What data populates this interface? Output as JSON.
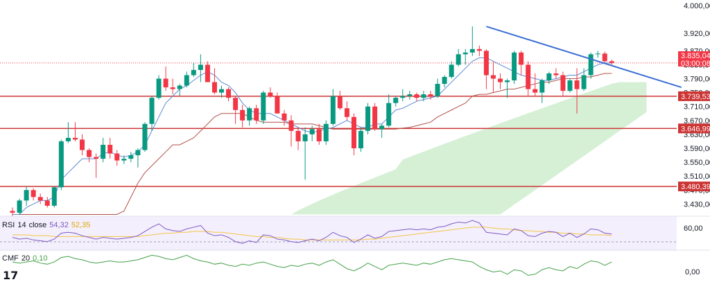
{
  "chart_data": {
    "type": "candlestick",
    "price_ticks": [
      "4.000,00",
      "3.920,00",
      "3.870,00",
      "3.830,00",
      "3.790,00",
      "3.750,00",
      "3.710,00",
      "3.670,00",
      "3.630,00",
      "3.590,00",
      "3.550,00",
      "3.510,00",
      "3.470,00",
      "3.430,00"
    ],
    "ylim": [
      3395,
      4000
    ],
    "last_price": {
      "value": 3835.04,
      "label": "3.835,04",
      "countdown": "03:00:08",
      "color": "#f23645"
    },
    "levels": [
      {
        "value": 3739.53,
        "label": "3.739,53"
      },
      {
        "value": 3646.99,
        "label": "3.646,99"
      },
      {
        "value": 3480.39,
        "label": "3.480,39"
      }
    ],
    "candles": [
      [
        3410,
        3420,
        3395,
        3405
      ],
      [
        3405,
        3445,
        3400,
        3440
      ],
      [
        3440,
        3480,
        3425,
        3470
      ],
      [
        3470,
        3475,
        3440,
        3450
      ],
      [
        3450,
        3460,
        3430,
        3440
      ],
      [
        3440,
        3450,
        3420,
        3425
      ],
      [
        3425,
        3480,
        3420,
        3478
      ],
      [
        3478,
        3615,
        3470,
        3610
      ],
      [
        3610,
        3665,
        3605,
        3620
      ],
      [
        3620,
        3665,
        3610,
        3615
      ],
      [
        3615,
        3630,
        3570,
        3585
      ],
      [
        3585,
        3590,
        3550,
        3565
      ],
      [
        3565,
        3575,
        3505,
        3560
      ],
      [
        3560,
        3620,
        3550,
        3600
      ],
      [
        3600,
        3620,
        3560,
        3575
      ],
      [
        3575,
        3585,
        3540,
        3555
      ],
      [
        3555,
        3570,
        3545,
        3560
      ],
      [
        3560,
        3580,
        3550,
        3570
      ],
      [
        3570,
        3590,
        3535,
        3585
      ],
      [
        3585,
        3665,
        3580,
        3660
      ],
      [
        3660,
        3740,
        3640,
        3735
      ],
      [
        3735,
        3800,
        3730,
        3790
      ],
      [
        3790,
        3825,
        3755,
        3765
      ],
      [
        3765,
        3790,
        3745,
        3760
      ],
      [
        3760,
        3775,
        3740,
        3770
      ],
      [
        3770,
        3810,
        3765,
        3800
      ],
      [
        3800,
        3835,
        3795,
        3815
      ],
      [
        3815,
        3860,
        3780,
        3830
      ],
      [
        3830,
        3840,
        3780,
        3780
      ],
      [
        3780,
        3820,
        3745,
        3750
      ],
      [
        3750,
        3770,
        3735,
        3760
      ],
      [
        3760,
        3765,
        3725,
        3735
      ],
      [
        3735,
        3740,
        3660,
        3700
      ],
      [
        3700,
        3715,
        3650,
        3670
      ],
      [
        3670,
        3710,
        3655,
        3705
      ],
      [
        3705,
        3715,
        3660,
        3670
      ],
      [
        3670,
        3755,
        3660,
        3750
      ],
      [
        3750,
        3765,
        3735,
        3740
      ],
      [
        3740,
        3750,
        3690,
        3690
      ],
      [
        3690,
        3700,
        3655,
        3670
      ],
      [
        3670,
        3685,
        3595,
        3640
      ],
      [
        3640,
        3650,
        3585,
        3610
      ],
      [
        3610,
        3650,
        3500,
        3630
      ],
      [
        3630,
        3655,
        3610,
        3645
      ],
      [
        3645,
        3660,
        3600,
        3610
      ],
      [
        3610,
        3670,
        3600,
        3660
      ],
      [
        3660,
        3760,
        3655,
        3740
      ],
      [
        3740,
        3755,
        3700,
        3705
      ],
      [
        3705,
        3725,
        3670,
        3680
      ],
      [
        3680,
        3690,
        3570,
        3590
      ],
      [
        3590,
        3650,
        3580,
        3640
      ],
      [
        3640,
        3720,
        3630,
        3710
      ],
      [
        3710,
        3720,
        3640,
        3645
      ],
      [
        3645,
        3660,
        3620,
        3655
      ],
      [
        3655,
        3745,
        3650,
        3720
      ],
      [
        3720,
        3740,
        3710,
        3735
      ],
      [
        3735,
        3760,
        3725,
        3740
      ],
      [
        3740,
        3755,
        3730,
        3745
      ],
      [
        3745,
        3750,
        3725,
        3735
      ],
      [
        3735,
        3755,
        3725,
        3745
      ],
      [
        3745,
        3755,
        3730,
        3740
      ],
      [
        3740,
        3790,
        3735,
        3775
      ],
      [
        3775,
        3800,
        3765,
        3795
      ],
      [
        3795,
        3840,
        3790,
        3830
      ],
      [
        3830,
        3875,
        3825,
        3860
      ],
      [
        3860,
        3875,
        3830,
        3865
      ],
      [
        3865,
        3940,
        3855,
        3875
      ],
      [
        3875,
        3885,
        3855,
        3870
      ],
      [
        3870,
        3875,
        3760,
        3800
      ],
      [
        3800,
        3840,
        3750,
        3790
      ],
      [
        3790,
        3805,
        3760,
        3780
      ],
      [
        3780,
        3790,
        3735,
        3785
      ],
      [
        3785,
        3870,
        3775,
        3865
      ],
      [
        3865,
        3870,
        3800,
        3830
      ],
      [
        3830,
        3840,
        3740,
        3760
      ],
      [
        3760,
        3805,
        3740,
        3750
      ],
      [
        3750,
        3790,
        3720,
        3785
      ],
      [
        3785,
        3810,
        3775,
        3805
      ],
      [
        3805,
        3820,
        3790,
        3800
      ],
      [
        3800,
        3810,
        3740,
        3755
      ],
      [
        3755,
        3790,
        3750,
        3785
      ],
      [
        3785,
        3820,
        3690,
        3760
      ],
      [
        3760,
        3820,
        3755,
        3800
      ],
      [
        3800,
        3865,
        3790,
        3860
      ],
      [
        3860,
        3870,
        3850,
        3862
      ],
      [
        3862,
        3868,
        3835,
        3840
      ],
      [
        3840,
        3845,
        3830,
        3835
      ]
    ],
    "kijun": [
      3400,
      3400,
      3400,
      3400,
      3400,
      3400,
      3400,
      3400,
      3400,
      3400,
      3400,
      3400,
      3400,
      3400,
      3400,
      3400,
      3410,
      3450,
      3490,
      3520,
      3540,
      3560,
      3580,
      3600,
      3600,
      3610,
      3620,
      3640,
      3660,
      3680,
      3690,
      3690,
      3690,
      3690,
      3680,
      3670,
      3665,
      3665,
      3665,
      3665,
      3660,
      3660,
      3660,
      3660,
      3655,
      3650,
      3645,
      3645,
      3645,
      3645,
      3645,
      3645,
      3645,
      3645,
      3645,
      3645,
      3648,
      3650,
      3655,
      3660,
      3665,
      3680,
      3690,
      3700,
      3710,
      3720,
      3740,
      3745,
      3745,
      3750,
      3755,
      3760,
      3760,
      3765,
      3770,
      3775,
      3780,
      3780,
      3785,
      3790,
      3790,
      3790,
      3795,
      3795,
      3800,
      3805,
      3805
    ],
    "tenkan": [
      3400,
      3400,
      3420,
      3430,
      3440,
      3440,
      3450,
      3500,
      3520,
      3540,
      3560,
      3560,
      3560,
      3575,
      3580,
      3570,
      3565,
      3570,
      3580,
      3600,
      3640,
      3680,
      3720,
      3740,
      3760,
      3770,
      3785,
      3800,
      3810,
      3800,
      3780,
      3770,
      3750,
      3720,
      3700,
      3690,
      3690,
      3690,
      3680,
      3670,
      3660,
      3650,
      3640,
      3635,
      3640,
      3645,
      3650,
      3660,
      3670,
      3660,
      3650,
      3650,
      3660,
      3660,
      3680,
      3700,
      3705,
      3715,
      3725,
      3730,
      3735,
      3740,
      3760,
      3780,
      3800,
      3820,
      3840,
      3850,
      3850,
      3840,
      3830,
      3820,
      3810,
      3800,
      3795,
      3790,
      3785,
      3785,
      3790,
      3795,
      3800,
      3800,
      3810,
      3820,
      3830,
      3835,
      3835
    ],
    "trendline": {
      "from": [
        68,
        3940
      ],
      "to": [
        96,
        3765
      ]
    },
    "rsi": {
      "label": "RSI",
      "period": "14",
      "source": "close",
      "value": "54,32",
      "ma_value": "52,35",
      "tick": "60,00",
      "values": [
        50,
        48,
        49,
        47,
        46,
        45,
        48,
        55,
        56,
        55,
        52,
        50,
        48,
        50,
        49,
        48,
        49,
        50,
        52,
        57,
        62,
        66,
        60,
        58,
        57,
        60,
        62,
        64,
        55,
        52,
        53,
        50,
        45,
        43,
        46,
        44,
        53,
        52,
        48,
        47,
        45,
        44,
        46,
        48,
        46,
        50,
        56,
        52,
        50,
        44,
        48,
        53,
        49,
        51,
        57,
        58,
        59,
        60,
        59,
        60,
        59,
        62,
        63,
        66,
        68,
        67,
        70,
        67,
        56,
        55,
        54,
        53,
        60,
        58,
        52,
        51,
        55,
        57,
        56,
        51,
        55,
        50,
        54,
        60,
        59,
        55,
        54
      ],
      "ma": [
        53,
        53,
        53,
        52,
        52,
        52,
        51,
        51,
        51,
        51,
        51,
        51,
        51,
        51,
        51,
        51,
        51,
        51,
        51,
        52,
        53,
        54,
        55,
        55,
        56,
        56,
        57,
        57,
        57,
        56,
        56,
        55,
        54,
        53,
        52,
        51,
        51,
        50,
        50,
        49,
        48,
        48,
        47,
        47,
        47,
        47,
        47,
        47,
        47,
        47,
        47,
        48,
        48,
        49,
        50,
        51,
        52,
        53,
        54,
        55,
        56,
        57,
        58,
        59,
        60,
        61,
        62,
        62,
        62,
        61,
        60,
        60,
        59,
        58,
        58,
        57,
        57,
        56,
        56,
        55,
        55,
        54,
        54,
        53,
        53,
        53,
        52
      ]
    },
    "cmf": {
      "label": "CMF",
      "period": "20",
      "value": "0,10",
      "tick": "0,00",
      "values": [
        0.1,
        0.09,
        0.1,
        0.11,
        0.09,
        0.08,
        0.1,
        0.14,
        0.15,
        0.13,
        0.12,
        0.1,
        0.09,
        0.1,
        0.11,
        0.1,
        0.1,
        0.11,
        0.12,
        0.14,
        0.16,
        0.15,
        0.13,
        0.12,
        0.14,
        0.16,
        0.13,
        0.11,
        0.1,
        0.08,
        0.09,
        0.07,
        0.06,
        0.08,
        0.07,
        0.09,
        0.1,
        0.08,
        0.06,
        0.05,
        0.07,
        0.06,
        0.08,
        0.09,
        0.07,
        0.1,
        0.12,
        0.08,
        0.04,
        0.02,
        0.05,
        0.09,
        0.06,
        0.03,
        0.07,
        0.08,
        0.09,
        0.08,
        0.07,
        0.09,
        0.08,
        0.1,
        0.12,
        0.13,
        0.12,
        0.11,
        0.1,
        0.06,
        0.03,
        0.01,
        0.02,
        -0.01,
        0.03,
        0.02,
        -0.02,
        -0.01,
        0.03,
        0.05,
        0.03,
        0.02,
        0.06,
        0.04,
        0.08,
        0.11,
        0.1,
        0.07,
        0.1
      ]
    }
  },
  "colors": {
    "up": "#089981",
    "down": "#f23645",
    "kijun": "#b2504a",
    "tenkan": "#5b8ad6",
    "cloud": "#c8ebc8",
    "trend": "#3b6fd4",
    "level": "#cc3333",
    "rsi": "#7e57c2",
    "rsi_ma": "#f5c542",
    "cmf": "#43a047"
  },
  "logo": "17"
}
